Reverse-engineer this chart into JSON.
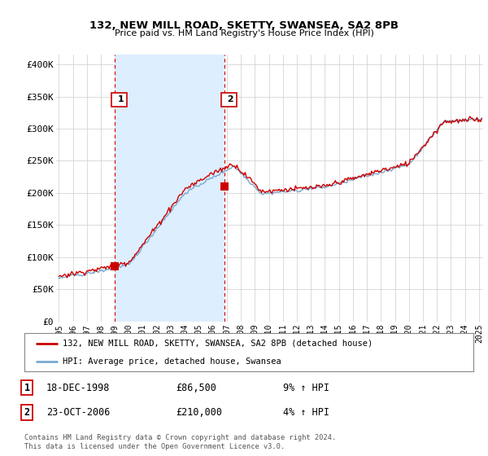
{
  "title": "132, NEW MILL ROAD, SKETTY, SWANSEA, SA2 8PB",
  "subtitle": "Price paid vs. HM Land Registry's House Price Index (HPI)",
  "ylabel_ticks": [
    "£0",
    "£50K",
    "£100K",
    "£150K",
    "£200K",
    "£250K",
    "£300K",
    "£350K",
    "£400K"
  ],
  "ytick_values": [
    0,
    50000,
    100000,
    150000,
    200000,
    250000,
    300000,
    350000,
    400000
  ],
  "ylim": [
    0,
    415000
  ],
  "xlim_start": 1994.8,
  "xlim_end": 2025.3,
  "background_color": "#ffffff",
  "plot_background": "#ffffff",
  "shade_color": "#ddeeff",
  "grid_color": "#cccccc",
  "hpi_color": "#7aaad0",
  "price_color": "#cc0000",
  "transaction1_date": 1998.96,
  "transaction1_price": 86500,
  "transaction2_date": 2006.81,
  "transaction2_price": 210000,
  "legend_entry1": "132, NEW MILL ROAD, SKETTY, SWANSEA, SA2 8PB (detached house)",
  "legend_entry2": "HPI: Average price, detached house, Swansea",
  "note1_label": "1",
  "note1_date": "18-DEC-1998",
  "note1_price": "£86,500",
  "note1_hpi": "9% ↑ HPI",
  "note2_label": "2",
  "note2_date": "23-OCT-2006",
  "note2_price": "£210,000",
  "note2_hpi": "4% ↑ HPI",
  "footer": "Contains HM Land Registry data © Crown copyright and database right 2024.\nThis data is licensed under the Open Government Licence v3.0."
}
